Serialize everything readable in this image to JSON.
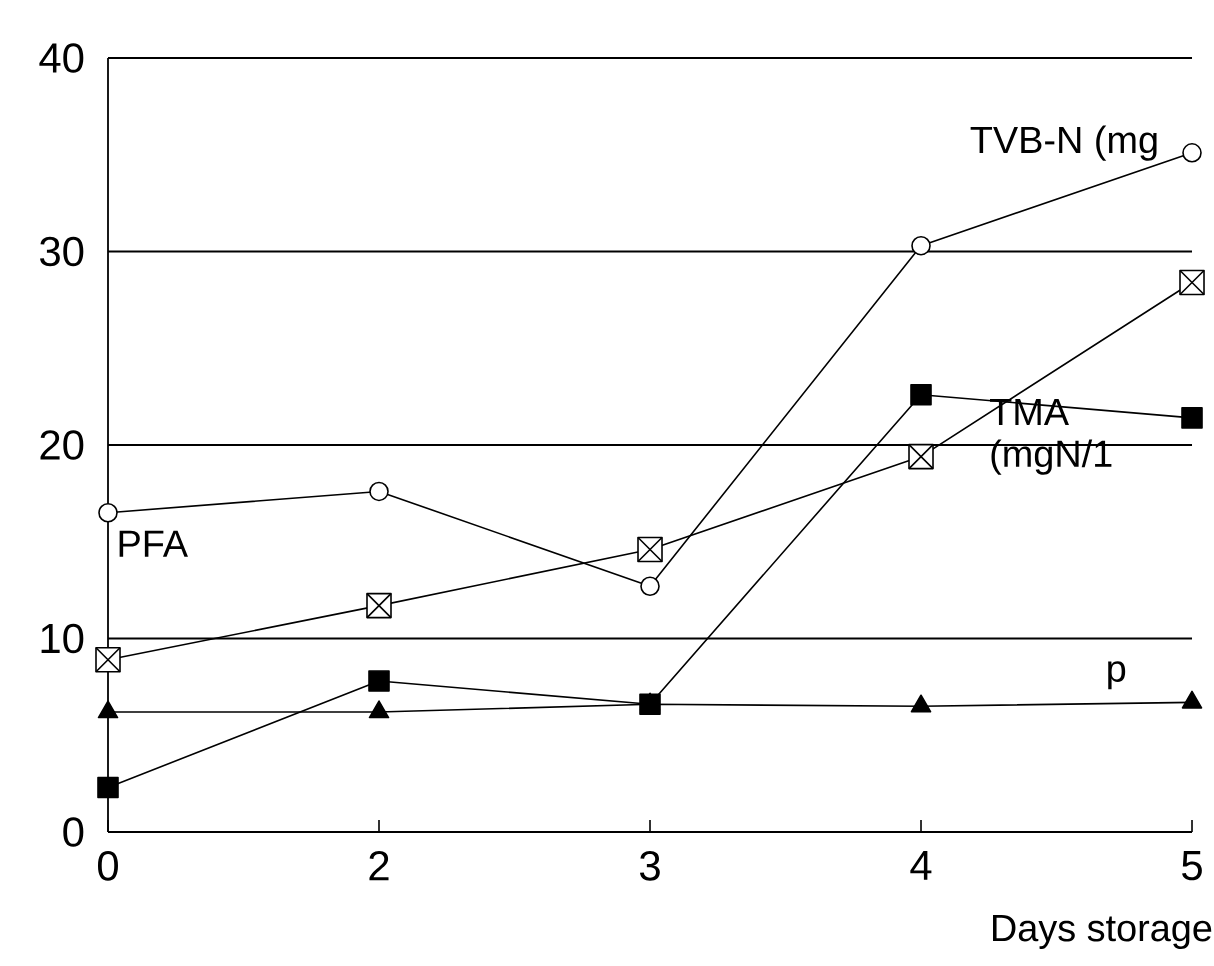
{
  "chart_data": {
    "type": "line",
    "xlabel": "Days storage",
    "categories": [
      "0",
      "2",
      "3",
      "4",
      "5"
    ],
    "ylim": [
      0,
      40
    ],
    "yticks": [
      0,
      10,
      20,
      30,
      40
    ],
    "grid": "y",
    "legend": false,
    "line_style": "solid",
    "annotations": [
      "PFA"
    ],
    "series": [
      {
        "name": "TVB-N (mg",
        "color": "#000000",
        "marker": "circle",
        "values": [
          16.5,
          17.6,
          12.7,
          30.3,
          35.1
        ]
      },
      {
        "name": "TMA (mgN/1",
        "color": "#000000",
        "marker": "square",
        "values": [
          8.9,
          11.7,
          14.6,
          19.4,
          28.4
        ]
      },
      {
        "color": "#000000",
        "marker": "square",
        "values": [
          2.3,
          7.8,
          6.6,
          22.6,
          21.4
        ]
      },
      {
        "name": "p",
        "color": "#000000",
        "marker": "triangle",
        "values": [
          6.2,
          6.2,
          6.6,
          6.5,
          6.7
        ]
      }
    ]
  }
}
